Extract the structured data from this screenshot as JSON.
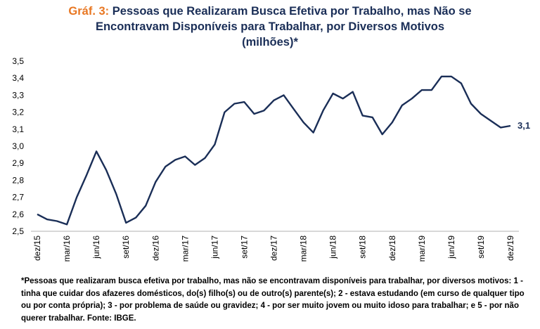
{
  "title": {
    "prefix": "Gráf. 3:",
    "line1": "Pessoas que Realizaram Busca Efetiva por Trabalho, mas Não se",
    "line2": "Encontravam Disponíveis para Trabalhar, por Diversos Motivos",
    "line3": "(milhões)*"
  },
  "note": "*Pessoas que realizaram busca efetiva por trabalho, mas não se encontravam disponíveis para trabalhar, por diversos motivos: 1 - tinha que cuidar dos afazeres domésticos, do(s) filho(s) ou de outro(s) parente(s); 2 - estava estudando (em curso de qualquer tipo ou por conta própria); 3 - por problema de saúde ou gravidez; 4 - por ser muito jovem ou muito idoso para trabalhar; e 5 - por não querer trabalhar. Fonte: IBGE.",
  "colors": {
    "line": "#1a2e57",
    "accent": "#e87722"
  },
  "chart_data": {
    "type": "line",
    "ylim": [
      2.5,
      3.5
    ],
    "yticks": [
      "2,5",
      "2,6",
      "2,7",
      "2,8",
      "2,9",
      "3,0",
      "3,1",
      "3,2",
      "3,3",
      "3,4",
      "3,5"
    ],
    "xticks": [
      "dez/15",
      "mar/16",
      "jun/16",
      "set/16",
      "dez/16",
      "mar/17",
      "jun/17",
      "set/17",
      "dez/17",
      "mar/18",
      "jun/18",
      "set/18",
      "dez/18",
      "mar/19",
      "jun/19",
      "set/19",
      "dez/19"
    ],
    "end_label": "3,1",
    "x": [
      "dez/15",
      "jan/16",
      "fev/16",
      "mar/16",
      "abr/16",
      "mai/16",
      "jun/16",
      "jul/16",
      "ago/16",
      "set/16",
      "out/16",
      "nov/16",
      "dez/16",
      "jan/17",
      "fev/17",
      "mar/17",
      "abr/17",
      "mai/17",
      "jun/17",
      "jul/17",
      "ago/17",
      "set/17",
      "out/17",
      "nov/17",
      "dez/17",
      "jan/18",
      "fev/18",
      "mar/18",
      "abr/18",
      "mai/18",
      "jun/18",
      "jul/18",
      "ago/18",
      "set/18",
      "out/18",
      "nov/18",
      "dez/18",
      "jan/19",
      "fev/19",
      "mar/19",
      "abr/19",
      "mai/19",
      "jun/19",
      "jul/19",
      "ago/19",
      "set/19",
      "out/19",
      "nov/19",
      "dez/19"
    ],
    "values": [
      2.6,
      2.57,
      2.56,
      2.54,
      2.7,
      2.83,
      2.97,
      2.86,
      2.72,
      2.55,
      2.58,
      2.65,
      2.79,
      2.88,
      2.92,
      2.94,
      2.89,
      2.93,
      3.01,
      3.2,
      3.25,
      3.26,
      3.19,
      3.21,
      3.27,
      3.3,
      3.22,
      3.14,
      3.08,
      3.21,
      3.31,
      3.28,
      3.32,
      3.18,
      3.17,
      3.07,
      3.14,
      3.24,
      3.28,
      3.33,
      3.33,
      3.41,
      3.41,
      3.37,
      3.25,
      3.19,
      3.15,
      3.11,
      3.12
    ]
  }
}
